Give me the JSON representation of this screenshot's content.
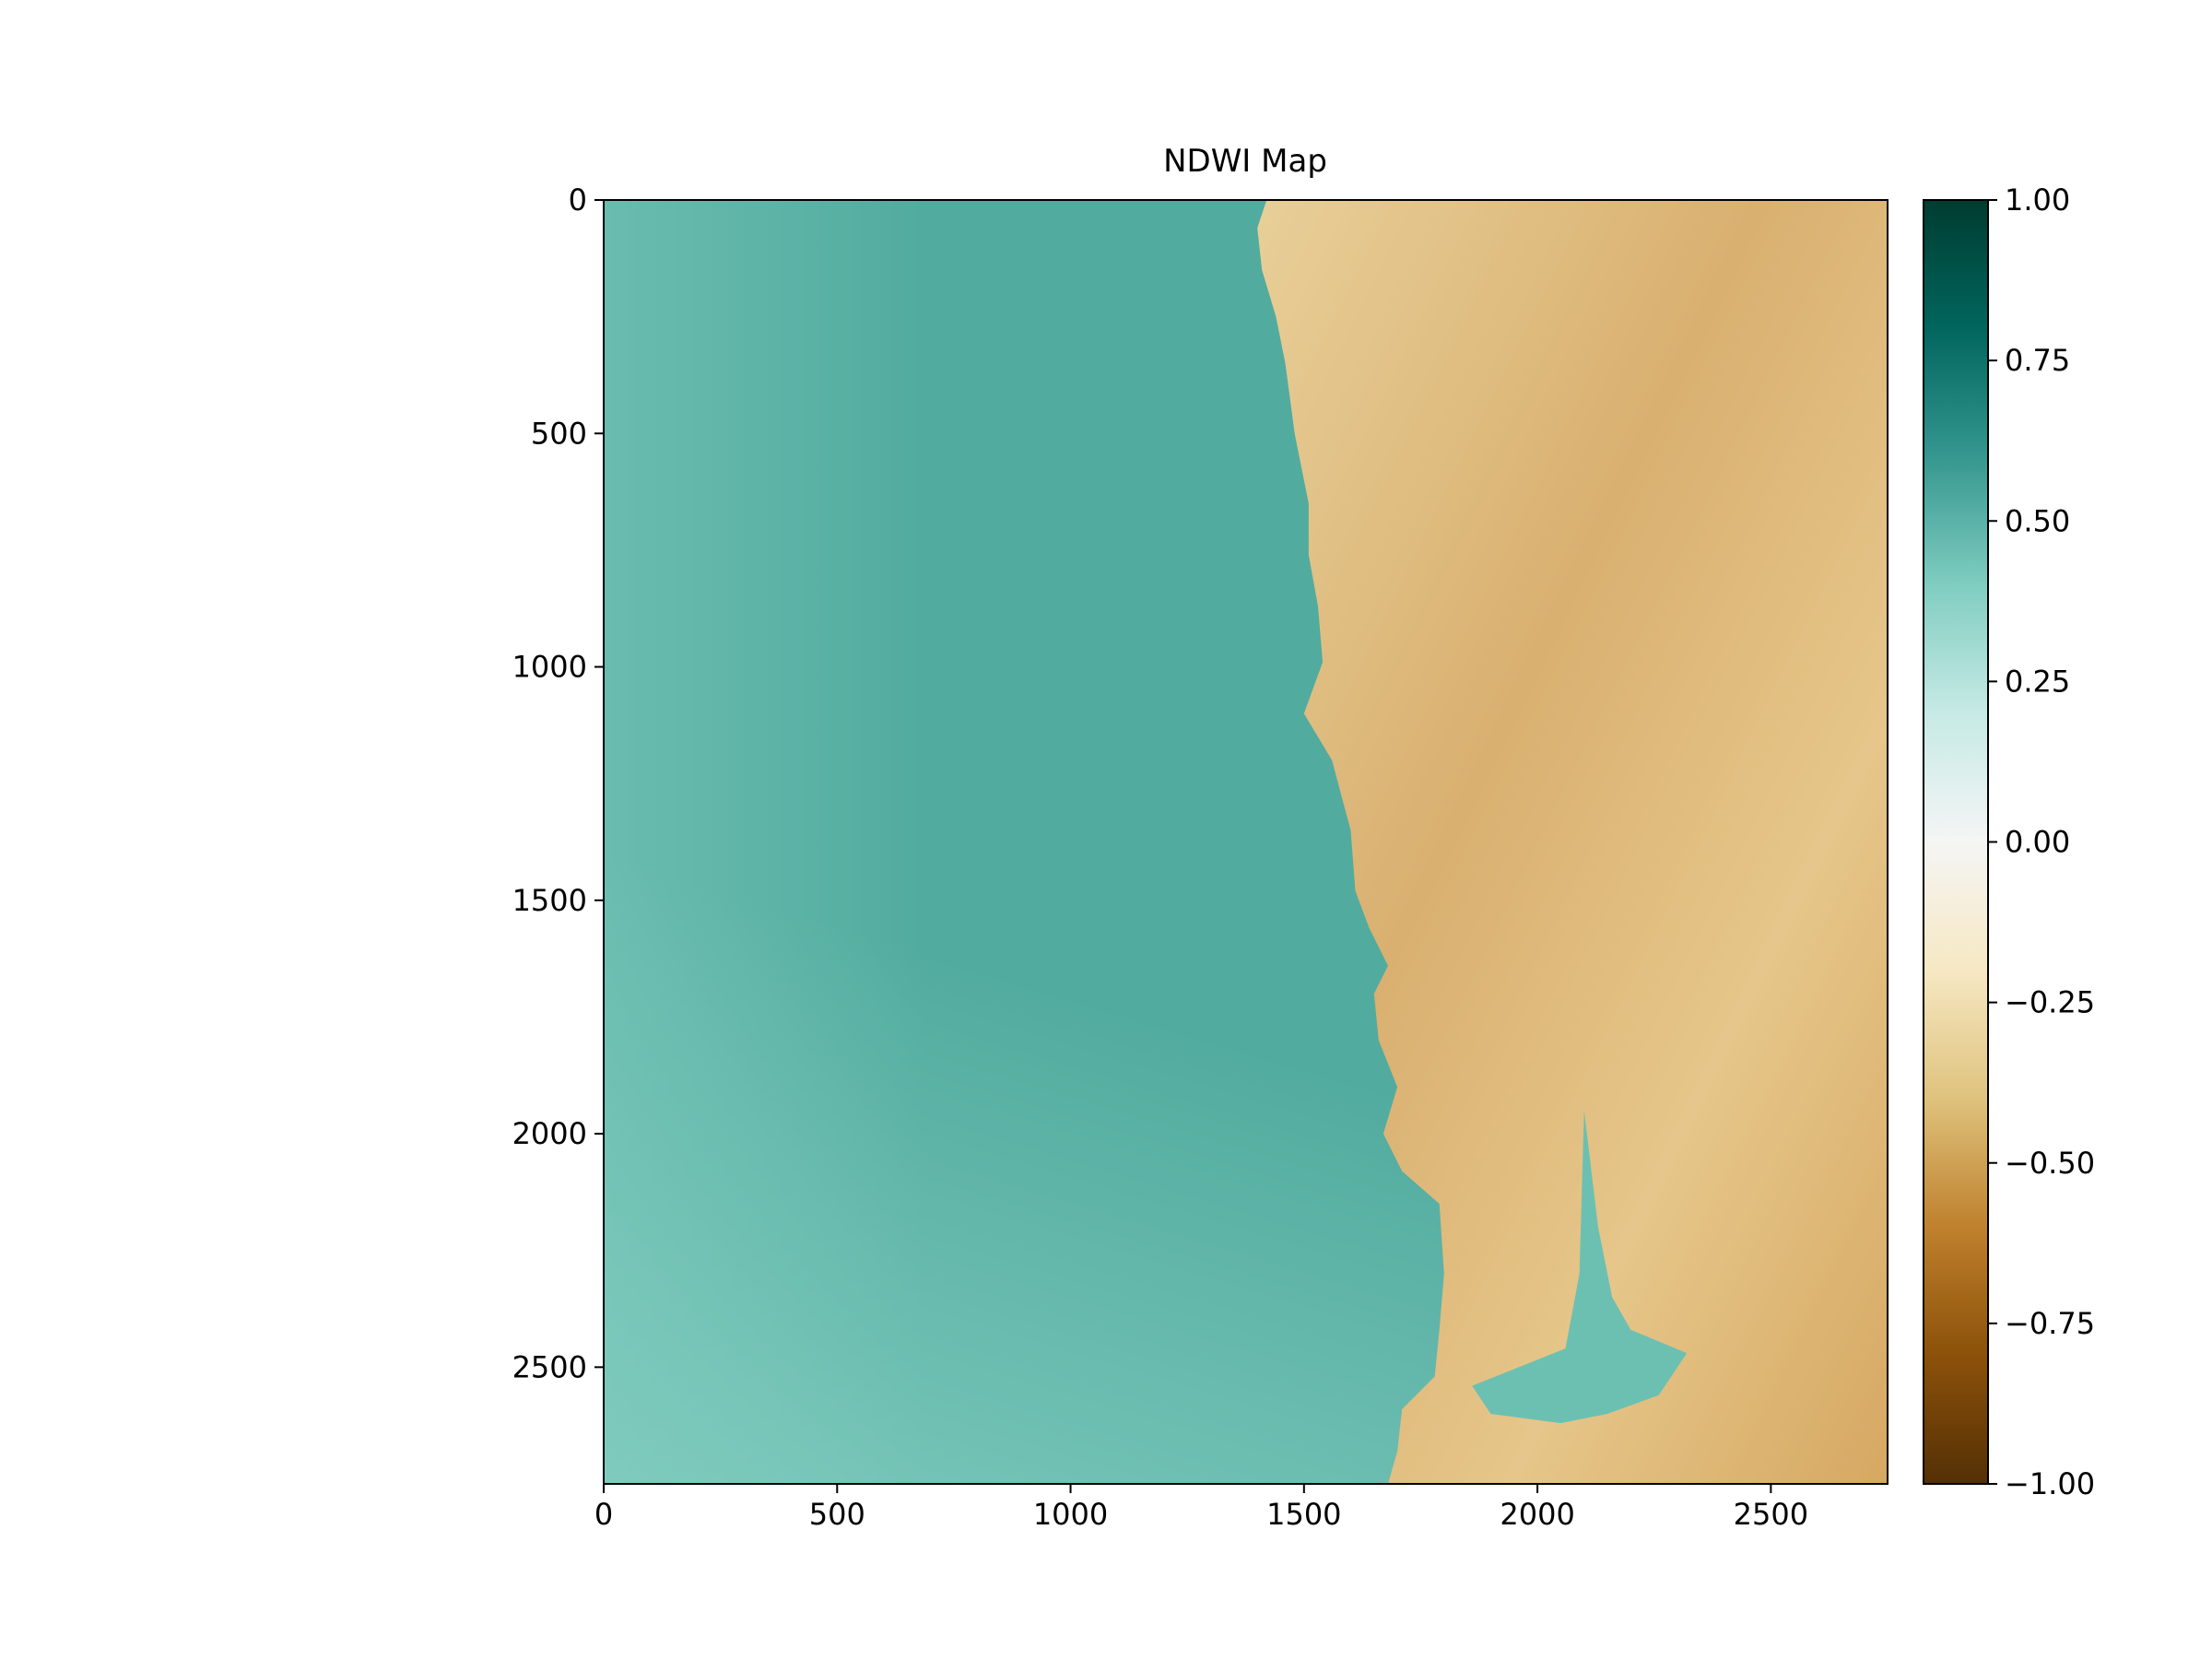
{
  "chart_data": {
    "type": "heatmap",
    "title": "NDWI Map",
    "xlabel": "",
    "ylabel": "",
    "xlim": [
      0,
      2750
    ],
    "ylim": [
      2750,
      0
    ],
    "x_ticks": [
      0,
      500,
      1000,
      1500,
      2000,
      2500
    ],
    "x_tick_labels": [
      "0",
      "500",
      "1000",
      "1500",
      "2000",
      "2500"
    ],
    "y_ticks": [
      0,
      500,
      1000,
      1500,
      2000,
      2500
    ],
    "y_tick_labels": [
      "0",
      "500",
      "1000",
      "1500",
      "2000",
      "2500"
    ],
    "colormap": "BrBG",
    "colorbar": {
      "range": [
        -1.0,
        1.0
      ],
      "ticks": [
        1.0,
        0.75,
        0.5,
        0.25,
        0.0,
        -0.25,
        -0.5,
        -0.75,
        -1.0
      ],
      "tick_labels": [
        "1.00",
        "0.75",
        "0.50",
        "0.25",
        "0.00",
        "−0.25",
        "−0.50",
        "−0.75",
        "−1.00"
      ],
      "colors": [
        "#543005",
        "#8c510a",
        "#bf812d",
        "#dfc27d",
        "#f6e8c3",
        "#f5f5f5",
        "#c7eae5",
        "#80cdc1",
        "#35978f",
        "#01665e",
        "#003c30"
      ]
    },
    "regions": {
      "water_description_values": {
        "offshore_ndwi": 0.45,
        "nearshore_ndwi": 0.35,
        "land_ndwi": -0.35
      }
    },
    "coastline": [
      [
        1420,
        0
      ],
      [
        1400,
        60
      ],
      [
        1410,
        150
      ],
      [
        1440,
        250
      ],
      [
        1460,
        350
      ],
      [
        1480,
        500
      ],
      [
        1510,
        650
      ],
      [
        1510,
        760
      ],
      [
        1530,
        870
      ],
      [
        1540,
        990
      ],
      [
        1500,
        1100
      ],
      [
        1560,
        1200
      ],
      [
        1600,
        1350
      ],
      [
        1610,
        1480
      ],
      [
        1640,
        1560
      ],
      [
        1680,
        1640
      ],
      [
        1650,
        1700
      ],
      [
        1660,
        1800
      ],
      [
        1700,
        1900
      ],
      [
        1670,
        2000
      ],
      [
        1710,
        2080
      ],
      [
        1790,
        2150
      ],
      [
        1800,
        2300
      ],
      [
        1790,
        2420
      ],
      [
        1780,
        2520
      ],
      [
        1710,
        2590
      ],
      [
        1700,
        2680
      ],
      [
        1680,
        2750
      ]
    ],
    "bay": [
      [
        2100,
        1950
      ],
      [
        2130,
        2200
      ],
      [
        2160,
        2350
      ],
      [
        2200,
        2420
      ],
      [
        2320,
        2470
      ],
      [
        2260,
        2560
      ],
      [
        2150,
        2600
      ],
      [
        2050,
        2620
      ],
      [
        1900,
        2600
      ],
      [
        1860,
        2540
      ],
      [
        1960,
        2500
      ],
      [
        2060,
        2460
      ],
      [
        2090,
        2300
      ]
    ]
  }
}
